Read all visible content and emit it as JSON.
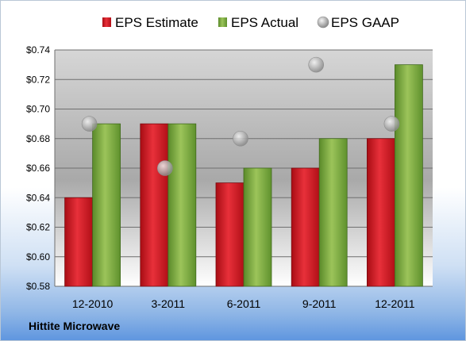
{
  "company_label": "Hittite Microwave",
  "chart_data": {
    "type": "bar",
    "categories": [
      "12-2010",
      "3-2011",
      "6-2011",
      "9-2011",
      "12-2011"
    ],
    "series": [
      {
        "name": "EPS Estimate",
        "type": "bar",
        "color": "#d3141f",
        "values": [
          0.64,
          0.69,
          0.65,
          0.66,
          0.68
        ]
      },
      {
        "name": "EPS Actual",
        "type": "bar",
        "color": "#72a83a",
        "values": [
          0.69,
          0.69,
          0.66,
          0.68,
          0.73
        ]
      },
      {
        "name": "EPS GAAP",
        "type": "scatter",
        "color": "#a8a8a8",
        "values": [
          0.69,
          0.66,
          0.68,
          0.73,
          0.69
        ]
      }
    ],
    "ylim": [
      0.58,
      0.74
    ],
    "yticks": [
      "$0.58",
      "$0.60",
      "$0.62",
      "$0.64",
      "$0.66",
      "$0.68",
      "$0.70",
      "$0.72",
      "$0.74"
    ],
    "grid": true,
    "legend": "top"
  }
}
